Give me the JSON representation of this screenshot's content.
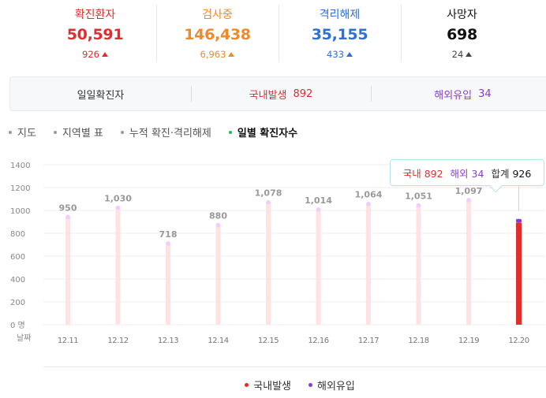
{
  "stats": [
    {
      "label": "확진환자",
      "value": "50,591",
      "delta": "926",
      "color": "#e02d2d",
      "delta_color": "#e02d2d"
    },
    {
      "label": "검사중",
      "value": "146,438",
      "delta": "6,963",
      "color": "#ee8a2e",
      "delta_color": "#ee8a2e"
    },
    {
      "label": "격리해제",
      "value": "35,155",
      "delta": "433",
      "color": "#2f6fd6",
      "delta_color": "#2f6fd6"
    },
    {
      "label": "사망자",
      "value": "698",
      "delta": "24",
      "color": "#111111",
      "delta_color": "#444444"
    }
  ],
  "summary": {
    "daily_label": "일일확진자",
    "domestic_label": "국내발생",
    "domestic_value": "892",
    "imported_label": "해외유입",
    "imported_value": "34"
  },
  "tabs": [
    {
      "label": "지도",
      "active": false
    },
    {
      "label": "지역별 표",
      "active": false
    },
    {
      "label": "누적 확진·격리해제",
      "active": false
    },
    {
      "label": "일별 확진자수",
      "active": true
    }
  ],
  "tooltip": {
    "domestic_label": "국내",
    "domestic_value": "892",
    "imported_label": "해외",
    "imported_value": "34",
    "total_label": "합계",
    "total_value": "926"
  },
  "legend": [
    {
      "label": "국내발생",
      "color": "#e02d2d"
    },
    {
      "label": "해외유입",
      "color": "#8b3ad6"
    }
  ],
  "chart_data": {
    "type": "bar",
    "xlabel": "날짜",
    "y_unit": "명",
    "ylim": [
      0,
      1400
    ],
    "yticks": [
      0,
      200,
      400,
      600,
      800,
      1000,
      1200,
      1400
    ],
    "categories": [
      "12.11",
      "12.12",
      "12.13",
      "12.14",
      "12.15",
      "12.16",
      "12.17",
      "12.18",
      "12.19",
      "12.20"
    ],
    "totals": [
      950,
      1030,
      718,
      880,
      1078,
      1014,
      1064,
      1051,
      1097,
      926
    ],
    "labels_shown": [
      "950",
      "1,030",
      "718",
      "880",
      "1,078",
      "1,014",
      "1,064",
      "1,051",
      "1,097",
      ""
    ],
    "selected_index": 9,
    "series": [
      {
        "name": "국내발생",
        "values": [
          null,
          null,
          null,
          null,
          null,
          null,
          null,
          null,
          null,
          892
        ],
        "color": "#e02d2d"
      },
      {
        "name": "해외유입",
        "values": [
          null,
          null,
          null,
          null,
          null,
          null,
          null,
          null,
          null,
          34
        ],
        "color": "#8b3ad6"
      }
    ],
    "bar_color": "#ffe3e3",
    "grid": true
  }
}
